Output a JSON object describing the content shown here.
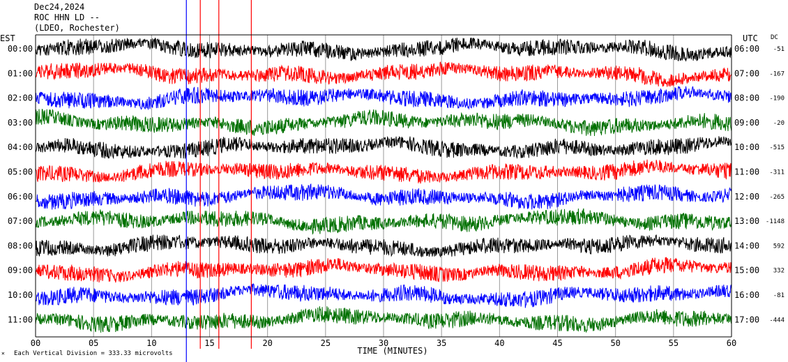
{
  "header": {
    "date": "Dec24,2024",
    "station": "ROC HHN LD --",
    "network": "(LDEO, Rochester)"
  },
  "labels": {
    "left_tz": "EST",
    "right_tz": "UTC",
    "dc": "DC"
  },
  "footer": {
    "note": "Each Vertical Division =  333.33 microvolts"
  },
  "chart_data": {
    "type": "line",
    "title": "Dec24,2024",
    "xlabel": "TIME (MINUTES)",
    "xlim": [
      0,
      60
    ],
    "x_ticks": [
      "00",
      "05",
      "10",
      "15",
      "20",
      "25",
      "30",
      "35",
      "40",
      "45",
      "50",
      "55",
      "60"
    ],
    "grid": "vertical lines every 5 minutes",
    "rows": [
      {
        "est": "00:00",
        "utc": "06:00",
        "dc": "-51",
        "color": "#000000"
      },
      {
        "est": "01:00",
        "utc": "07:00",
        "dc": "-167",
        "color": "#ff0000"
      },
      {
        "est": "02:00",
        "utc": "08:00",
        "dc": "-190",
        "color": "#0000ff"
      },
      {
        "est": "03:00",
        "utc": "09:00",
        "dc": "-20",
        "color": "#007000"
      },
      {
        "est": "04:00",
        "utc": "10:00",
        "dc": "-515",
        "color": "#000000"
      },
      {
        "est": "05:00",
        "utc": "11:00",
        "dc": "-311",
        "color": "#ff0000"
      },
      {
        "est": "06:00",
        "utc": "12:00",
        "dc": "-265",
        "color": "#0000ff"
      },
      {
        "est": "07:00",
        "utc": "13:00",
        "dc": "-1148",
        "color": "#007000"
      },
      {
        "est": "08:00",
        "utc": "14:00",
        "dc": "592",
        "color": "#000000"
      },
      {
        "est": "09:00",
        "utc": "15:00",
        "dc": "332",
        "color": "#ff0000"
      },
      {
        "est": "10:00",
        "utc": "16:00",
        "dc": "-81",
        "color": "#0000ff"
      },
      {
        "est": "11:00",
        "utc": "17:00",
        "dc": "-444",
        "color": "#007000"
      }
    ],
    "spikes": [
      {
        "minute": 14.2,
        "color": "#ff0000"
      },
      {
        "minute": 15.8,
        "color": "#ff0000"
      },
      {
        "minute": 18.6,
        "color": "#ff0000"
      },
      {
        "minute": 13.0,
        "color": "#0000ff"
      }
    ]
  }
}
